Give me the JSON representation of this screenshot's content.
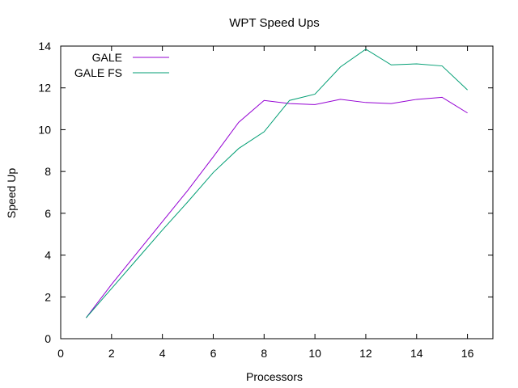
{
  "chart_data": {
    "type": "line",
    "title": "WPT Speed Ups",
    "xlabel": "Processors",
    "ylabel": "Speed Up",
    "xlim": [
      0,
      17
    ],
    "ylim": [
      0,
      14
    ],
    "x_ticks": [
      0,
      2,
      4,
      6,
      8,
      10,
      12,
      14,
      16
    ],
    "y_ticks": [
      0,
      2,
      4,
      6,
      8,
      10,
      12,
      14
    ],
    "x_tick_labels": [
      "0",
      "2",
      "4",
      "6",
      "8",
      "10",
      "12",
      "14",
      "16"
    ],
    "y_tick_labels": [
      "0",
      "2",
      "4",
      "6",
      "8",
      "10",
      "12",
      "14"
    ],
    "grid": false,
    "legend_position": "top-left",
    "x": [
      1,
      2,
      3,
      4,
      5,
      6,
      7,
      8,
      9,
      10,
      11,
      12,
      13,
      14,
      15,
      16
    ],
    "series": [
      {
        "name": "GALE",
        "color": "#9400d3",
        "values": [
          1.0,
          2.6,
          4.1,
          5.6,
          7.1,
          8.7,
          10.35,
          11.4,
          11.25,
          11.2,
          11.45,
          11.3,
          11.25,
          11.45,
          11.55,
          10.8
        ]
      },
      {
        "name": "GALE FS",
        "color": "#009e73",
        "values": [
          1.0,
          2.4,
          3.8,
          5.2,
          6.55,
          7.95,
          9.1,
          9.9,
          11.4,
          11.7,
          13.0,
          13.85,
          13.1,
          13.15,
          13.05,
          11.9
        ]
      }
    ]
  }
}
